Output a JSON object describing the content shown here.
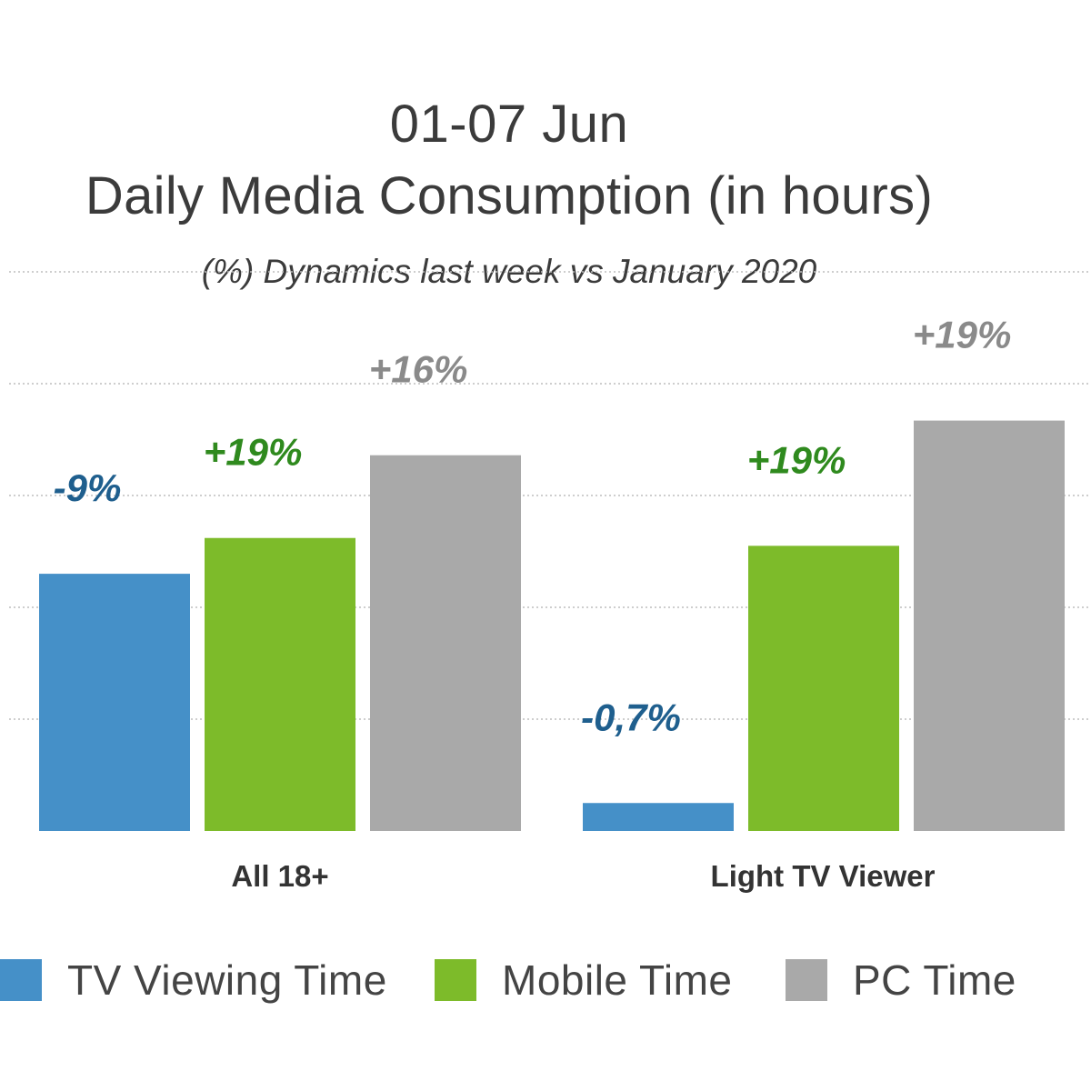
{
  "chart_data": {
    "type": "bar",
    "title": "01-07 Jun",
    "subtitle": "Daily Media Consumption (in hours)",
    "note": "(%) Dynamics last week  vs January 2020",
    "categories": [
      "All 18+",
      "Light TV Viewer"
    ],
    "series": [
      {
        "name": "TV Viewing Time",
        "color": "#4590c8",
        "values": [
          2.3,
          0.25
        ],
        "labels": [
          "-9%",
          "-0,7%"
        ],
        "label_color": "#1f5f8e"
      },
      {
        "name": "Mobile Time",
        "color": "#7dbb2a",
        "values": [
          2.62,
          2.55
        ],
        "labels": [
          "+19%",
          "+19%"
        ],
        "label_color": "#2f8a1e"
      },
      {
        "name": "PC Time",
        "color": "#a9a9a9",
        "values": [
          3.36,
          3.67
        ],
        "labels": [
          "+16%",
          "+19%"
        ],
        "label_color": "#8a8a8a"
      }
    ],
    "ylim": [
      0,
      4
    ],
    "gridlines": true,
    "axis_labels_visible": false,
    "legend": "bottom"
  }
}
